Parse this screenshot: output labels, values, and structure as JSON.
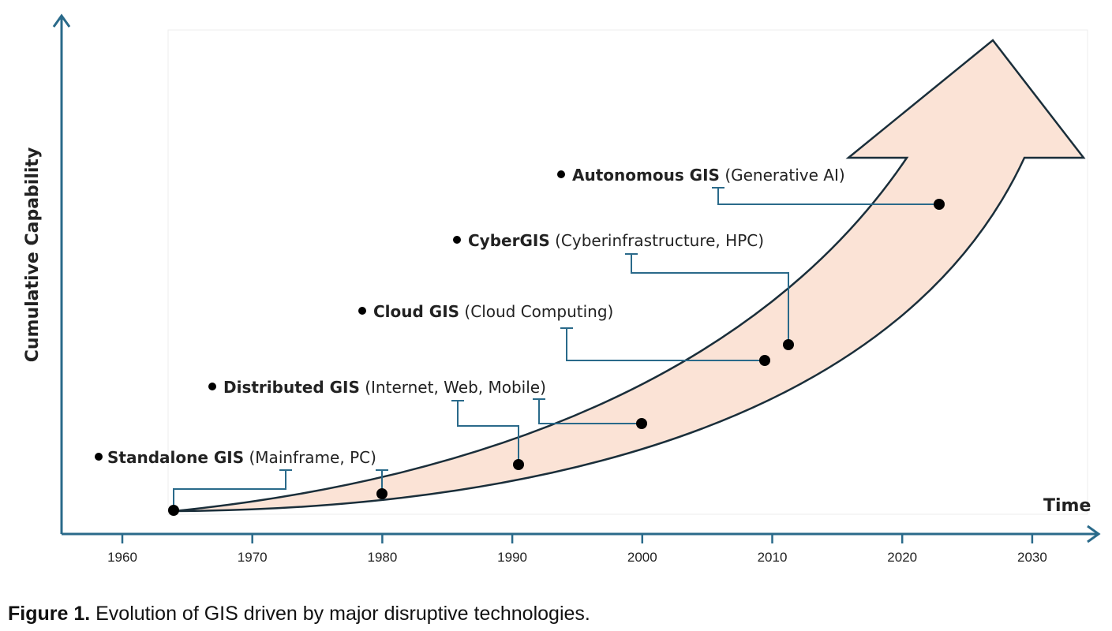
{
  "figure": {
    "y_axis_label": "Cumulative Capability",
    "x_axis_label": "Time",
    "x_ticks": [
      "1960",
      "1970",
      "1980",
      "1990",
      "2000",
      "2010",
      "2020",
      "2030"
    ],
    "milestones": [
      {
        "name": "Standalone GIS",
        "detail": "(Mainframe, PC)"
      },
      {
        "name": "Distributed GIS",
        "detail": "(Internet, Web, Mobile)"
      },
      {
        "name": "Cloud GIS",
        "detail": "(Cloud Computing)"
      },
      {
        "name": "CyberGIS",
        "detail": "(Cyberinfrastructure, HPC)"
      },
      {
        "name": "Autonomous GIS",
        "detail": "(Generative AI)"
      }
    ],
    "colors": {
      "arrow_fill": "#fbe3d6",
      "arrow_stroke": "#1a2e3a",
      "axis": "#2a6a8a",
      "connector": "#2a6a8a"
    }
  },
  "caption": {
    "label": "Figure 1.",
    "text": " Evolution of GIS driven by major disruptive technologies."
  }
}
